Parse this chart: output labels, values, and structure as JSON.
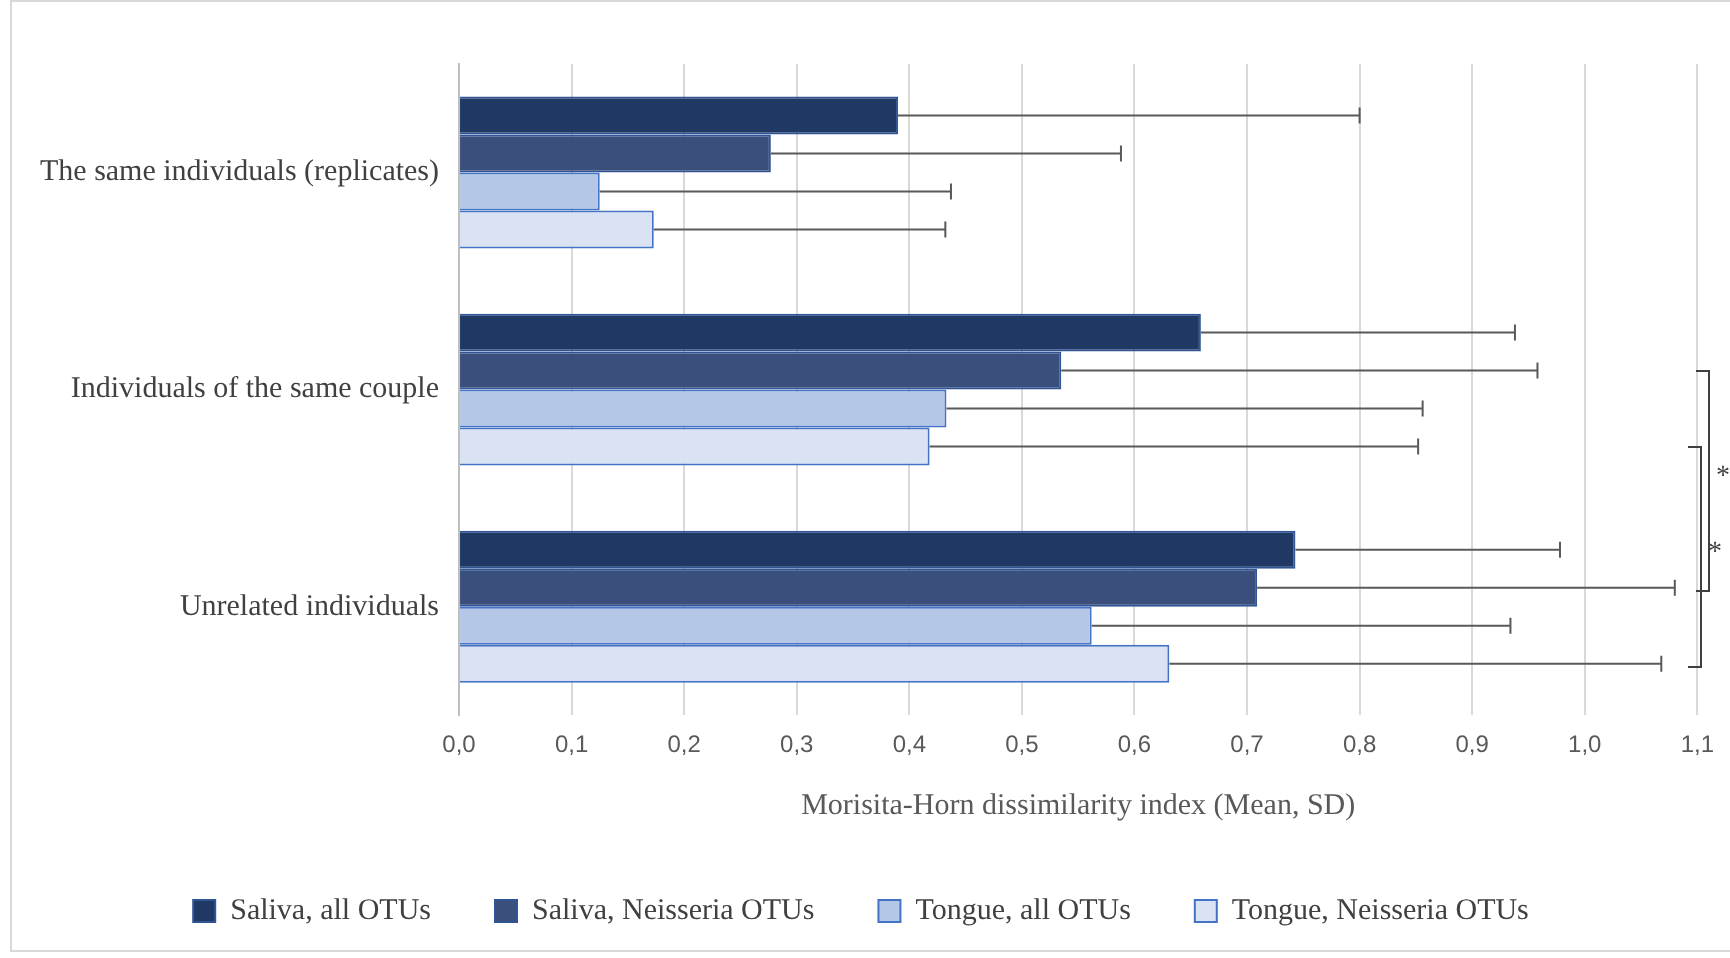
{
  "chart_data": {
    "type": "bar",
    "orientation": "horizontal",
    "xlabel": "Morisita-Horn dissimilarity index (Mean, SD)",
    "categories": [
      "The same individuals (replicates)",
      "Individuals of the same couple",
      "Unrelated individuals"
    ],
    "series": [
      {
        "name": "Saliva, all OTUs",
        "color": "#1f3864",
        "values": [
          0.39,
          0.659,
          0.743
        ],
        "errors": [
          [
            0.39,
            0.8
          ],
          [
            0.659,
            0.938
          ],
          [
            0.743,
            0.978
          ]
        ]
      },
      {
        "name": "Saliva, Neisseria OTUs",
        "color": "#3b4f7c",
        "values": [
          0.277,
          0.535,
          0.709
        ],
        "errors": [
          [
            0.277,
            0.588
          ],
          [
            0.535,
            0.958
          ],
          [
            0.709,
            1.08
          ]
        ]
      },
      {
        "name": "Tongue, all OTUs",
        "color": "#b4c7e7",
        "values": [
          0.125,
          0.433,
          0.562
        ],
        "errors": [
          [
            0.125,
            0.437
          ],
          [
            0.433,
            0.856
          ],
          [
            0.562,
            0.934
          ]
        ]
      },
      {
        "name": "Tongue, Neisseria OTUs",
        "color": "#dae3f3",
        "values": [
          0.173,
          0.418,
          0.631
        ],
        "errors": [
          [
            0.173,
            0.432
          ],
          [
            0.418,
            0.852
          ],
          [
            0.631,
            1.068
          ]
        ]
      }
    ],
    "xlim": [
      0,
      1.1
    ],
    "xticks": [
      {
        "value": 0,
        "label": "0,0"
      },
      {
        "value": 0.1,
        "label": "0,1"
      },
      {
        "value": 0.2,
        "label": "0,2"
      },
      {
        "value": 0.3,
        "label": "0,3"
      },
      {
        "value": 0.4,
        "label": "0,4"
      },
      {
        "value": 0.5,
        "label": "0,5"
      },
      {
        "value": 0.6,
        "label": "0,6"
      },
      {
        "value": 0.7,
        "label": "0,7"
      },
      {
        "value": 0.8,
        "label": "0,8"
      },
      {
        "value": 0.9,
        "label": "0,9"
      },
      {
        "value": 1,
        "label": "1,0"
      },
      {
        "value": 1.1,
        "label": "1,1"
      }
    ],
    "grid": "x",
    "legend": "bottom",
    "annotations": [
      "*",
      "*"
    ]
  }
}
